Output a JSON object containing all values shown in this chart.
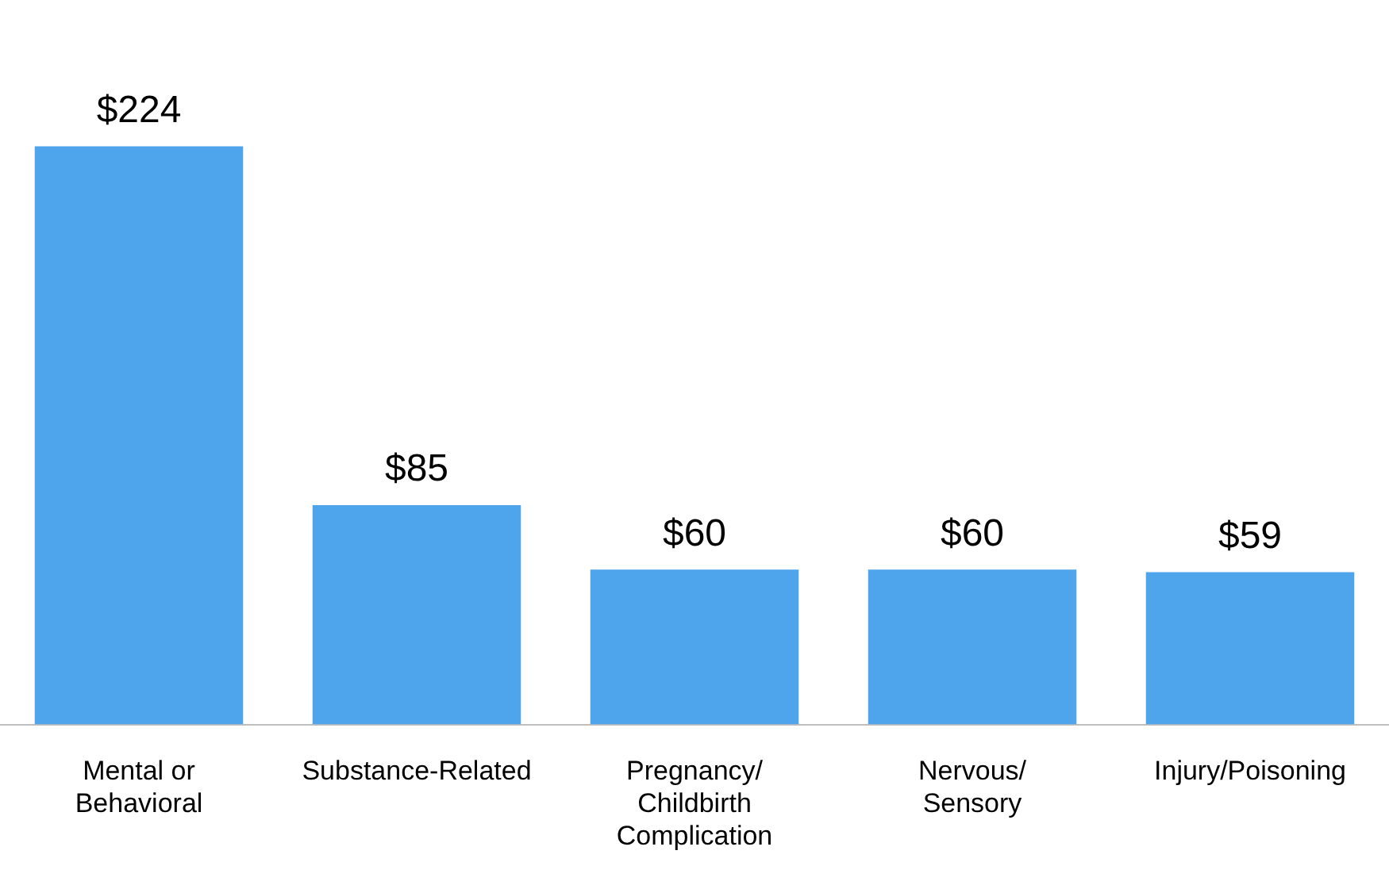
{
  "chart_data": {
    "type": "bar",
    "categories": [
      "Mental or Behavioral",
      "Substance-Related",
      "Pregnancy/Childbirth Complication",
      "Nervous/Sensory",
      "Injury/Poisoning"
    ],
    "values": [
      224,
      85,
      60,
      60,
      59
    ],
    "color": "#4ea5ec",
    "value_labels": [
      "$224",
      "$85",
      "$60",
      "$60",
      "$59"
    ],
    "grid": false,
    "legend": false
  }
}
